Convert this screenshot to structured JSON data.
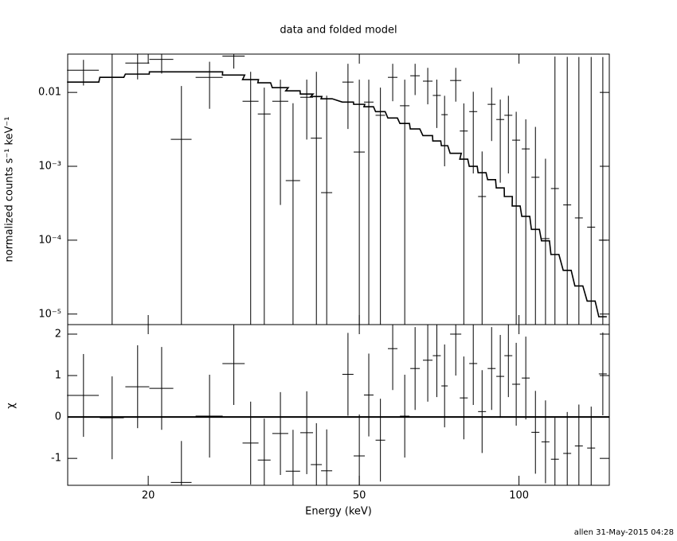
{
  "chart_data": [
    {
      "type": "errorbar",
      "title": "data and folded model",
      "ylabel": "normalized counts s⁻¹ keV⁻¹",
      "log_x": true,
      "log_y": true,
      "xlim": [
        14.1,
        148
      ],
      "ylim": [
        7.2e-06,
        0.033
      ],
      "yticks": [
        {
          "value": 0.01,
          "label": "0.01"
        },
        {
          "value": 0.001,
          "label": "10⁻³"
        },
        {
          "value": 0.0001,
          "label": "10⁻⁴"
        },
        {
          "value": 1e-05,
          "label": "10⁻⁵"
        }
      ],
      "x": [
        15.1,
        17.1,
        19.1,
        21.2,
        23.1,
        26.1,
        29.0,
        31.2,
        33.1,
        35.5,
        37.5,
        39.8,
        41.5,
        43.4,
        47.6,
        50,
        52.1,
        54.8,
        57.8,
        60.9,
        63.7,
        67.3,
        70.0,
        72.4,
        76.0,
        78.7,
        82.0,
        85.2,
        88.8,
        92.2,
        95.5,
        98.8,
        103.0,
        107.4,
        112.2,
        116.9,
        123.3,
        129.7,
        136.8,
        143.9
      ],
      "xerr": [
        1.04,
        0.89,
        0.99,
        1.1,
        1.04,
        1.53,
        1.4,
        1.08,
        0.92,
        1.23,
        1.17,
        1.1,
        1.0,
        1.05,
        1.15,
        1.21,
        1.08,
        1.14,
        1.2,
        1.26,
        1.32,
        1.4,
        1.21,
        1.0,
        1.84,
        1.36,
        1.42,
        1.47,
        1.53,
        1.59,
        1.65,
        1.71,
        1.78,
        1.86,
        1.94,
        2.02,
        2.13,
        2.24,
        2.37,
        2.49
      ],
      "series": [
        {
          "name": "data",
          "color": "#000000",
          "values": [
            0.02,
            0.016,
            0.025,
            0.028,
            0.00232,
            0.016,
            0.031,
            0.0076,
            0.0051,
            0.0076,
            0.00064,
            0.0086,
            0.0024,
            0.00044,
            0.0138,
            0.00156,
            0.0074,
            0.0049,
            0.016,
            0.0066,
            0.0168,
            0.0142,
            0.0091,
            0.005,
            0.0145,
            0.003,
            0.0055,
            0.00039,
            0.0069,
            0.0043,
            0.0049,
            0.00226,
            0.00172,
            0.00071,
            0.000105,
            0.0005,
            0.0003,
            0.0002,
            0.00015,
            0.0001
          ],
          "yerr": [
            0.0076,
            0.017,
            0.01,
            0.01,
            0.0099,
            0.01,
            0.01,
            0.0114,
            0.0065,
            0.0073,
            0.0065,
            0.0063,
            0.0166,
            0.0086,
            0.0106,
            0.0133,
            0.0075,
            0.0067,
            0.0084,
            0.0083,
            0.0076,
            0.0073,
            0.0058,
            0.004,
            0.007,
            0.0041,
            0.0047,
            0.0012,
            0.0047,
            0.0037,
            0.0041,
            0.0032,
            0.0026,
            0.0027,
            0.00116,
            0.03,
            0.03,
            0.03,
            0.03,
            0.03
          ]
        },
        {
          "name": "model",
          "color": "#000000",
          "values": [
            0.0138,
            0.016,
            0.0177,
            0.019,
            0.019,
            0.019,
            0.0172,
            0.0149,
            0.0135,
            0.0116,
            0.0105,
            0.0095,
            0.0088,
            0.0082,
            0.0074,
            0.0069,
            0.0064,
            0.0055,
            0.0045,
            0.0038,
            0.0032,
            0.0026,
            0.0022,
            0.0019,
            0.0015,
            0.00125,
            0.001,
            0.00082,
            0.00066,
            0.00051,
            0.00039,
            0.00029,
            0.00021,
            0.00014,
            9.8e-05,
            6.4e-05,
            3.9e-05,
            2.4e-05,
            1.5e-05,
            9.2e-06
          ]
        }
      ]
    },
    {
      "type": "residual",
      "xlabel": "Energy (keV)",
      "ylabel": "χ",
      "log_x": true,
      "xlim": [
        14.1,
        148
      ],
      "ylim": [
        -1.65,
        2.23
      ],
      "xticks": [
        20,
        50,
        100
      ],
      "yticks": [
        -1,
        0,
        1,
        2
      ],
      "reference": {
        "value": 0,
        "color": "#00ff00"
      },
      "series": [
        {
          "name": "chi",
          "color": "#000000",
          "values": [
            0.52,
            -0.02,
            0.73,
            0.69,
            -1.58,
            0.02,
            1.29,
            -0.63,
            -1.04,
            -0.4,
            -1.31,
            -0.38,
            -1.15,
            -1.3,
            1.03,
            -0.94,
            0.53,
            -0.56,
            1.65,
            0.02,
            1.17,
            1.37,
            1.48,
            0.75,
            2.0,
            0.46,
            1.29,
            0.13,
            1.17,
            0.98,
            1.48,
            0.79,
            0.94,
            -0.37,
            -0.6,
            -1.02,
            -0.88,
            -0.7,
            -0.75,
            1.04
          ],
          "yerr": [
            1,
            1,
            1,
            1,
            1,
            1,
            1,
            1,
            1,
            1,
            1,
            1,
            1,
            1,
            1,
            1,
            1,
            1,
            1,
            1,
            1,
            1,
            1,
            1,
            1,
            1,
            1,
            1,
            1,
            1,
            1,
            1,
            1,
            1,
            1,
            1,
            1,
            1,
            1,
            1
          ]
        }
      ]
    }
  ],
  "footer": "allen 31-May-2015 04:28"
}
